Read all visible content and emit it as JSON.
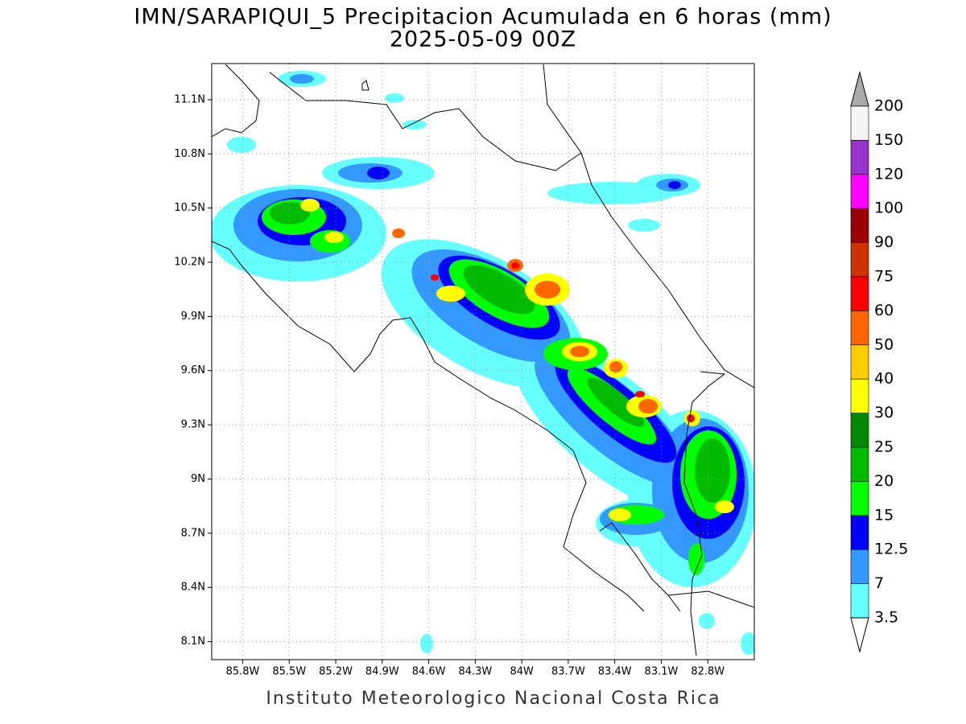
{
  "title": "IMN/SARAPIQUI_5 Precipitacion Acumulada en 6 horas (mm)",
  "subtitle": "2025-05-09 00Z",
  "footer": "Instituto Meteorologico Nacional Costa Rica",
  "map": {
    "xlim": [
      -86.0,
      -82.5
    ],
    "ylim": [
      8.0,
      11.3
    ],
    "grid": true,
    "xticks": [
      {
        "value": -85.8,
        "label": "85.8W"
      },
      {
        "value": -85.5,
        "label": "85.5W"
      },
      {
        "value": -85.2,
        "label": "85.2W"
      },
      {
        "value": -84.9,
        "label": "84.9W"
      },
      {
        "value": -84.6,
        "label": "84.6W"
      },
      {
        "value": -84.3,
        "label": "84.3W"
      },
      {
        "value": -84.0,
        "label": "84W"
      },
      {
        "value": -83.7,
        "label": "83.7W"
      },
      {
        "value": -83.4,
        "label": "83.4W"
      },
      {
        "value": -83.1,
        "label": "83.1W"
      },
      {
        "value": -82.8,
        "label": "82.8W"
      }
    ],
    "yticks": [
      {
        "value": 8.1,
        "label": "8.1N"
      },
      {
        "value": 8.4,
        "label": "8.4N"
      },
      {
        "value": 8.7,
        "label": "8.7N"
      },
      {
        "value": 9.0,
        "label": "9N"
      },
      {
        "value": 9.3,
        "label": "9.3N"
      },
      {
        "value": 9.6,
        "label": "9.6N"
      },
      {
        "value": 9.9,
        "label": "9.9N"
      },
      {
        "value": 10.2,
        "label": "10.2N"
      },
      {
        "value": 10.5,
        "label": "10.5N"
      },
      {
        "value": 10.8,
        "label": "10.8N"
      },
      {
        "value": 11.1,
        "label": "11.1N"
      }
    ]
  },
  "colorbar": {
    "levels": [
      200,
      150,
      120,
      100,
      90,
      75,
      60,
      50,
      40,
      30,
      25,
      20,
      15,
      12.5,
      7,
      3.5
    ],
    "colors": [
      "#f4f4f4",
      "#9933cc",
      "#ff00ff",
      "#990000",
      "#cc3300",
      "#ff0000",
      "#ff6600",
      "#ffcc00",
      "#ffff00",
      "#008800",
      "#00bb00",
      "#00ff00",
      "#0000ff",
      "#3399ff",
      "#66ffff"
    ],
    "over_color": "#aaaaaa",
    "under_color": "#ffffff"
  }
}
